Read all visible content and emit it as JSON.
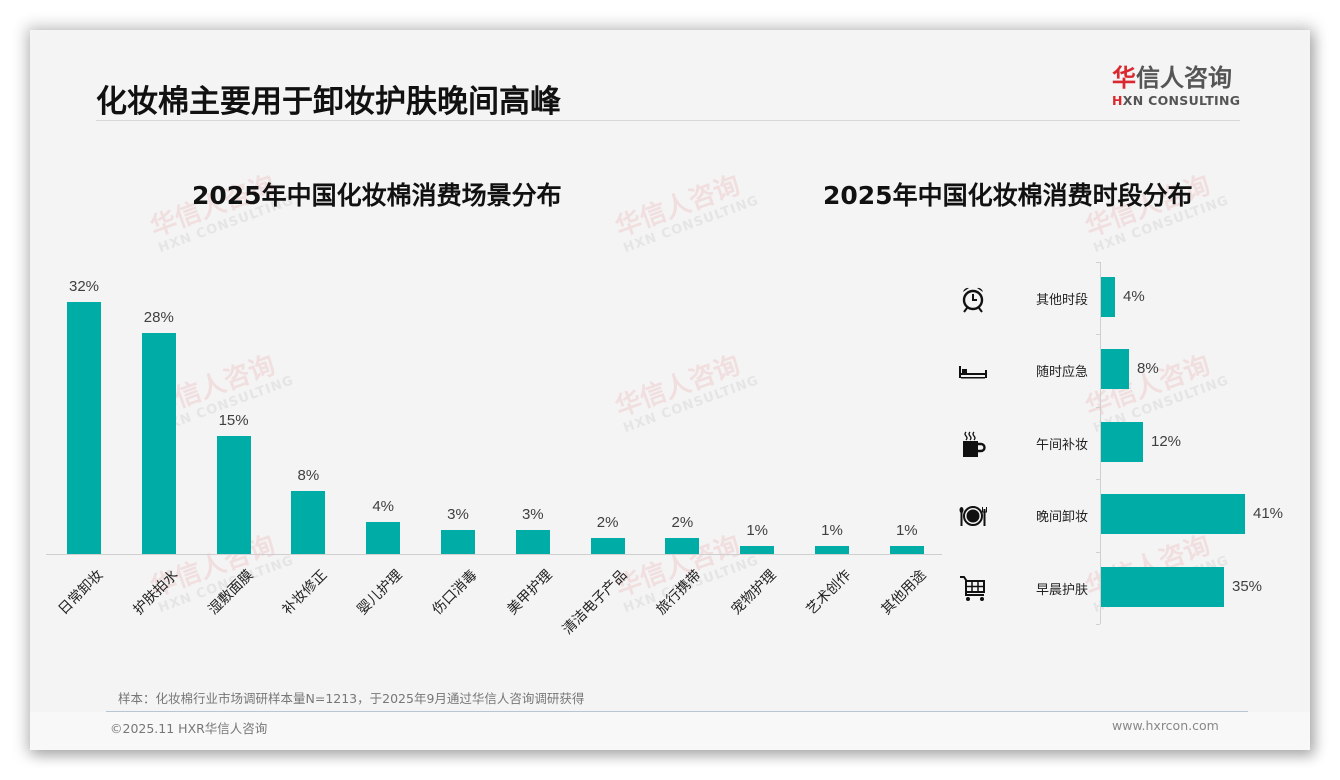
{
  "slide": {
    "title": "化妆棉主要用于卸妆护肤晚间高峰",
    "logo": {
      "cn_first": "华",
      "cn_rest": "信人咨询",
      "en_mark": "H",
      "en_rest": "XN CONSULTING"
    },
    "watermark": {
      "cn": "华信人咨询",
      "en": "HXN CONSULTING"
    }
  },
  "colors": {
    "bar": "#00ada6",
    "logo_red": "#d9282f",
    "text": "#111111"
  },
  "chart_data": [
    {
      "type": "bar",
      "title": "2025年中国化妆棉消费场景分布",
      "categories": [
        "日常卸妆",
        "护肤拍水",
        "湿敷面膜",
        "补妆修正",
        "婴儿护理",
        "伤口消毒",
        "美甲护理",
        "清洁电子产品",
        "旅行携带",
        "宠物护理",
        "艺术创作",
        "其他用途"
      ],
      "values": [
        32,
        28,
        15,
        8,
        4,
        3,
        3,
        2,
        2,
        1,
        1,
        1
      ],
      "value_labels": [
        "32%",
        "28%",
        "15%",
        "8%",
        "4%",
        "3%",
        "3%",
        "2%",
        "2%",
        "1%",
        "1%",
        "1%"
      ],
      "xlabel": "",
      "ylabel": "",
      "unit": "%",
      "grid": false,
      "legend": "none"
    },
    {
      "type": "bar",
      "orientation": "horizontal",
      "title": "2025年中国化妆棉消费时段分布",
      "categories": [
        "其他时段",
        "随时应急",
        "午间补妆",
        "晚间卸妆",
        "早晨护肤"
      ],
      "values": [
        4,
        8,
        12,
        41,
        35
      ],
      "value_labels": [
        "4%",
        "8%",
        "12%",
        "41%",
        "35%"
      ],
      "icons": [
        "alarm-clock-icon",
        "bed-icon",
        "coffee-mug-icon",
        "plate-cutlery-icon",
        "shopping-cart-icon"
      ],
      "xlabel": "",
      "ylabel": "",
      "unit": "%",
      "grid": false,
      "legend": "none"
    }
  ],
  "footer": {
    "note": "样本：化妆棉行业市场调研样本量N=1213，于2025年9月通过华信人咨询调研获得",
    "copyright": "©2025.11 HXR华信人咨询",
    "website": "www.hxrcon.com"
  }
}
